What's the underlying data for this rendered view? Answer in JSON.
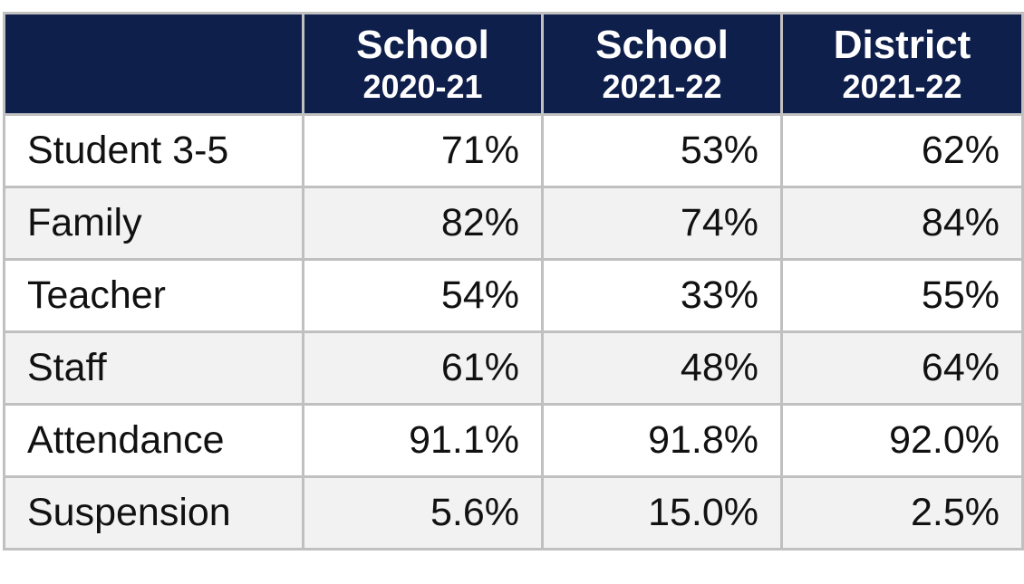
{
  "table": {
    "columns": [
      {
        "title": "School",
        "subtitle": "2020-21"
      },
      {
        "title": "School",
        "subtitle": "2021-22"
      },
      {
        "title": "District",
        "subtitle": "2021-22"
      }
    ],
    "rows": [
      [
        "Student 3-5",
        "71%",
        "53%",
        "62%"
      ],
      [
        "Family",
        "82%",
        "74%",
        "84%"
      ],
      [
        "Teacher",
        "54%",
        "33%",
        "55%"
      ],
      [
        "Staff",
        "61%",
        "48%",
        "64%"
      ],
      [
        "Attendance",
        "91.1%",
        "91.8%",
        "92.0%"
      ],
      [
        "Suspension",
        "5.6%",
        "15.0%",
        "2.5%"
      ]
    ]
  }
}
